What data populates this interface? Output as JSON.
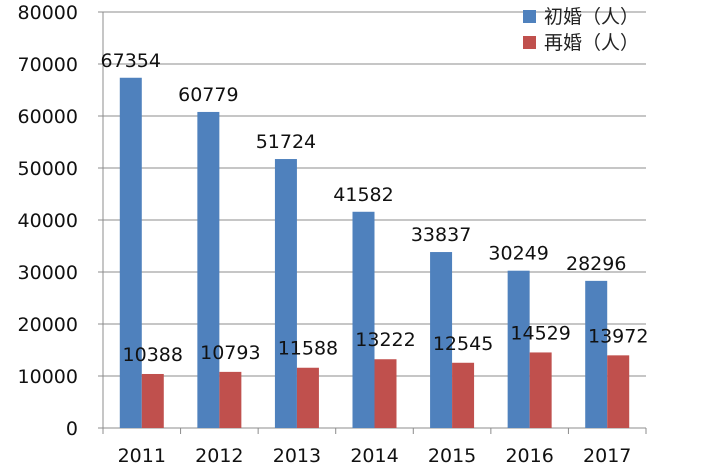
{
  "chart_data": {
    "type": "bar",
    "categories": [
      "2011",
      "2012",
      "2013",
      "2014",
      "2015",
      "2016",
      "2017"
    ],
    "series": [
      {
        "name": "初婚（人）",
        "color": "#4F81BD",
        "values": [
          67354,
          60779,
          51724,
          41582,
          33837,
          30249,
          28296
        ],
        "labels": [
          "67354",
          "60779",
          "51724",
          "41582",
          "33837",
          "30249",
          "28296"
        ]
      },
      {
        "name": "再婚（人）",
        "color": "#C0504D",
        "values": [
          10388,
          10793,
          11588,
          13222,
          12545,
          14529,
          13972
        ],
        "labels": [
          "10388",
          "10793",
          "11588",
          "13222",
          "12545",
          "14529",
          "13972"
        ]
      }
    ],
    "y_ticks": [
      "0",
      "10000",
      "20000",
      "30000",
      "40000",
      "50000",
      "60000",
      "70000",
      "80000"
    ],
    "ylim": [
      0,
      80000
    ],
    "grid": true,
    "legend_position": "top-right",
    "title": "",
    "xlabel": "",
    "ylabel": ""
  }
}
